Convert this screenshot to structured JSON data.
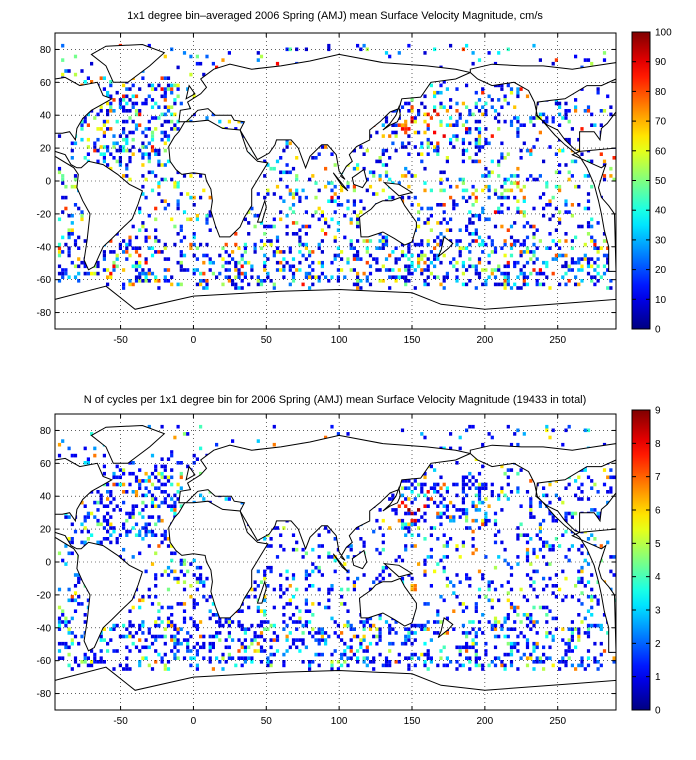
{
  "figures": [
    {
      "title": "1x1 degree bin–averaged 2006 Spring (AMJ) mean Surface Velocity Magnitude, cm/s",
      "x_ticks": [
        "-50",
        "0",
        "50",
        "100",
        "150",
        "200",
        "250"
      ],
      "y_ticks": [
        "80",
        "60",
        "40",
        "20",
        "0",
        "-20",
        "-40",
        "-60",
        "-80"
      ],
      "colorbar_ticks": [
        "100",
        "90",
        "80",
        "70",
        "60",
        "50",
        "40",
        "30",
        "20",
        "10",
        "0"
      ],
      "colorbar_min": 0,
      "colorbar_max": 100,
      "colormap": "jet"
    },
    {
      "title": "N of cycles per 1x1 degree bin for 2006 Spring (AMJ) mean Surface Velocity Magnitude (19433 in total)",
      "x_ticks": [
        "-50",
        "0",
        "50",
        "100",
        "150",
        "200",
        "250"
      ],
      "y_ticks": [
        "80",
        "60",
        "40",
        "20",
        "0",
        "-20",
        "-40",
        "-60",
        "-80"
      ],
      "colorbar_ticks": [
        "9",
        "8",
        "7",
        "6",
        "5",
        "4",
        "3",
        "2",
        "1",
        "0"
      ],
      "colorbar_min": 0,
      "colorbar_max": 9,
      "colormap": "jet"
    }
  ],
  "chart_data": [
    {
      "type": "heatmap",
      "title": "1x1 degree bin–averaged 2006 Spring (AMJ) mean Surface Velocity Magnitude, cm/s",
      "xlim": [
        -95,
        290
      ],
      "ylim": [
        -90,
        90
      ],
      "grid": true,
      "colorbar_range": [
        0,
        100
      ],
      "units": "cm/s"
    },
    {
      "type": "heatmap",
      "title": "N of cycles per 1x1 degree bin for 2006 Spring (AMJ) mean Surface Velocity Magnitude (19433 in total)",
      "xlim": [
        -95,
        290
      ],
      "ylim": [
        -90,
        90
      ],
      "grid": true,
      "colorbar_range": [
        0,
        9
      ],
      "total_cycles": 19433
    }
  ]
}
